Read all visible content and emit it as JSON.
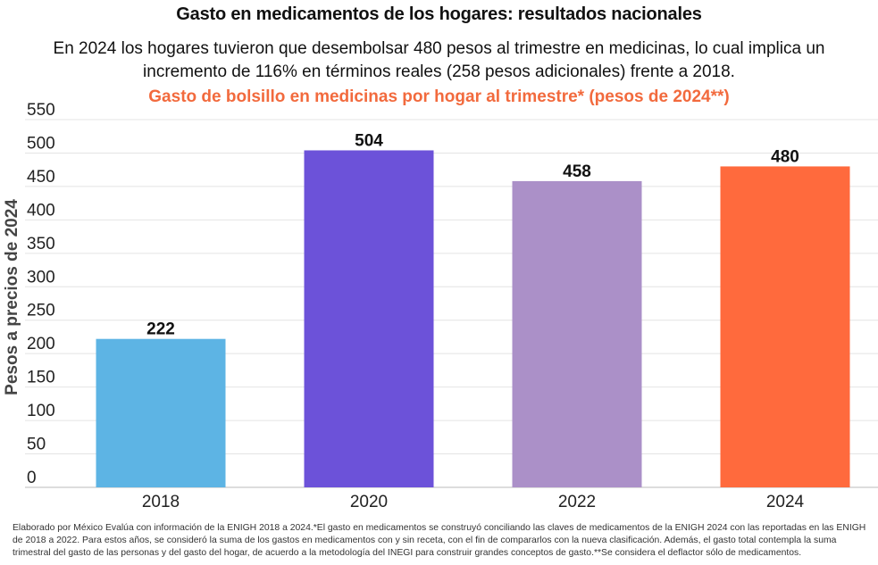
{
  "title": "Gasto en medicamentos de los hogares: resultados nacionales",
  "subtitle": "En 2024 los hogares tuvieron que desembolsar 480 pesos al trimestre en medicinas, lo cual implica un incremento de 116% en términos reales (258 pesos adicionales) frente a 2018.",
  "chart_data": {
    "type": "bar",
    "title": "Gasto de bolsillo en medicinas por hogar al trimestre* (pesos de 2024**)",
    "xlabel": "",
    "ylabel": "Pesos a precios de 2024",
    "categories": [
      "2018",
      "2020",
      "2022",
      "2024"
    ],
    "values": [
      222,
      504,
      458,
      480
    ],
    "labels": [
      "222",
      "504",
      "458",
      "480"
    ],
    "colors": [
      "#5db4e4",
      "#6c52d9",
      "#ab90c8",
      "#ff6a3d"
    ],
    "ylim": [
      0,
      550
    ],
    "yticks": [
      0,
      50,
      100,
      150,
      200,
      250,
      300,
      350,
      400,
      450,
      500,
      550
    ],
    "grid": true,
    "legend": "none",
    "title_color": "#f26a3d"
  },
  "footnote": "Elaborado por México Evalúa con información de la ENIGH 2018 a 2024.*El gasto en medicamentos se construyó conciliando las claves de medicamentos de la ENIGH 2024 con las reportadas en las ENIGH de 2018 a 2022. Para estos años, se consideró la suma de los gastos en medicamentos con y sin receta, con el fin de compararlos con la nueva clasificación. Además, el gasto total contempla la suma trimestral del gasto de las personas y del gasto del hogar, de acuerdo a la metodología del INEGI para construir grandes conceptos de gasto.**Se considera el deflactor sólo de medicamentos."
}
